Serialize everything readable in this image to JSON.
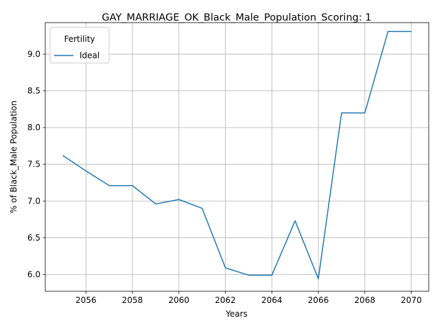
{
  "chart_data": {
    "type": "line",
    "title": "GAY_MARRIAGE_OK_Black_Male_Population_Scoring: 1",
    "xlabel": "Years",
    "ylabel": "% of Black_Male Population",
    "xlim": [
      2054.25,
      2070.75
    ],
    "ylim": [
      5.77,
      9.43
    ],
    "xticks": [
      2056,
      2058,
      2060,
      2062,
      2064,
      2066,
      2068,
      2070
    ],
    "xtick_labels": [
      "2056",
      "2058",
      "2060",
      "2062",
      "2064",
      "2066",
      "2068",
      "2070"
    ],
    "yticks": [
      6.0,
      6.5,
      7.0,
      7.5,
      8.0,
      8.5,
      9.0
    ],
    "ytick_labels": [
      "6.0",
      "6.5",
      "7.0",
      "7.5",
      "8.0",
      "8.5",
      "9.0"
    ],
    "grid": true,
    "legend": {
      "title": "Fertility",
      "placement": "top-left"
    },
    "series": [
      {
        "name": "Ideal",
        "color": "#1f77b4",
        "x": [
          2055,
          2056,
          2057,
          2058,
          2059,
          2060,
          2061,
          2062,
          2063,
          2064,
          2065,
          2066,
          2067,
          2068,
          2069,
          2070
        ],
        "y": [
          7.62,
          7.41,
          7.21,
          7.21,
          6.96,
          7.02,
          6.9,
          6.09,
          5.99,
          5.99,
          6.73,
          5.94,
          8.2,
          8.2,
          9.31,
          9.31
        ]
      }
    ]
  }
}
